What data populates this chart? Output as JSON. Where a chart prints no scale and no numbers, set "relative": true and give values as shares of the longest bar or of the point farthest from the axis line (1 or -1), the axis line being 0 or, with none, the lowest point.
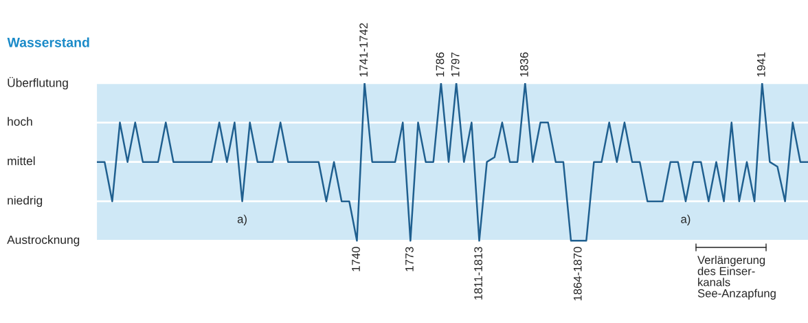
{
  "chart_data": {
    "type": "line",
    "title": "Wasserstand",
    "relative": true,
    "categories": [
      null,
      null,
      null,
      null,
      null,
      null,
      null,
      null,
      null,
      null,
      null,
      null,
      null,
      null,
      null,
      null,
      null,
      null,
      null,
      "a)",
      null,
      null,
      null,
      null,
      null,
      null,
      null,
      null,
      null,
      null,
      null,
      null,
      null,
      null,
      "1740",
      "1741-1742",
      null,
      null,
      null,
      null,
      null,
      "1773",
      null,
      null,
      null,
      "1786",
      null,
      "1797",
      null,
      null,
      "1811-1813",
      null,
      null,
      null,
      null,
      null,
      "1836",
      null,
      null,
      null,
      null,
      null,
      null,
      "1864-1870",
      null,
      null,
      null,
      null,
      null,
      null,
      null,
      null,
      null,
      null,
      null,
      null,
      null,
      "a)",
      null,
      null,
      null,
      null,
      null,
      null,
      null,
      null,
      null,
      "1941",
      null,
      null,
      null,
      null,
      null,
      null
    ],
    "series": [
      {
        "color": "#1f5f8f",
        "values": [
          0.5,
          0.5,
          0.25,
          0.75,
          0.5,
          0.75,
          0.5,
          0.5,
          0.5,
          0.75,
          0.5,
          0.5,
          0.5,
          0.5,
          0.5,
          0.5,
          0.75,
          0.5,
          0.75,
          0.25,
          0.75,
          0.5,
          0.5,
          0.5,
          0.75,
          0.5,
          0.5,
          0.5,
          0.5,
          0.5,
          0.25,
          0.5,
          0.25,
          0.25,
          0,
          1,
          0.5,
          0.5,
          0.5,
          0.5,
          0.75,
          0,
          0.75,
          0.5,
          0.5,
          1,
          0.5,
          1,
          0.5,
          0.75,
          0,
          0.5,
          0.53,
          0.75,
          0.5,
          0.5,
          1,
          0.5,
          0.75,
          0.75,
          0.5,
          0.5,
          0,
          0,
          0,
          0.5,
          0.5,
          0.75,
          0.5,
          0.75,
          0.5,
          0.5,
          0.25,
          0.25,
          0.25,
          0.5,
          0.5,
          0.25,
          0.5,
          0.5,
          0.25,
          0.5,
          0.25,
          0.75,
          0.25,
          0.5,
          0.25,
          1,
          0.5,
          0.47,
          0.25,
          0.75,
          0.5,
          0.5
        ]
      }
    ],
    "annotations": [
      "Überflutung",
      "hoch",
      "mittel",
      "niedrig",
      "Austrocknung",
      "Verlängerung\ndes Einser-\nkanals\nSee-Anzapfung"
    ]
  }
}
